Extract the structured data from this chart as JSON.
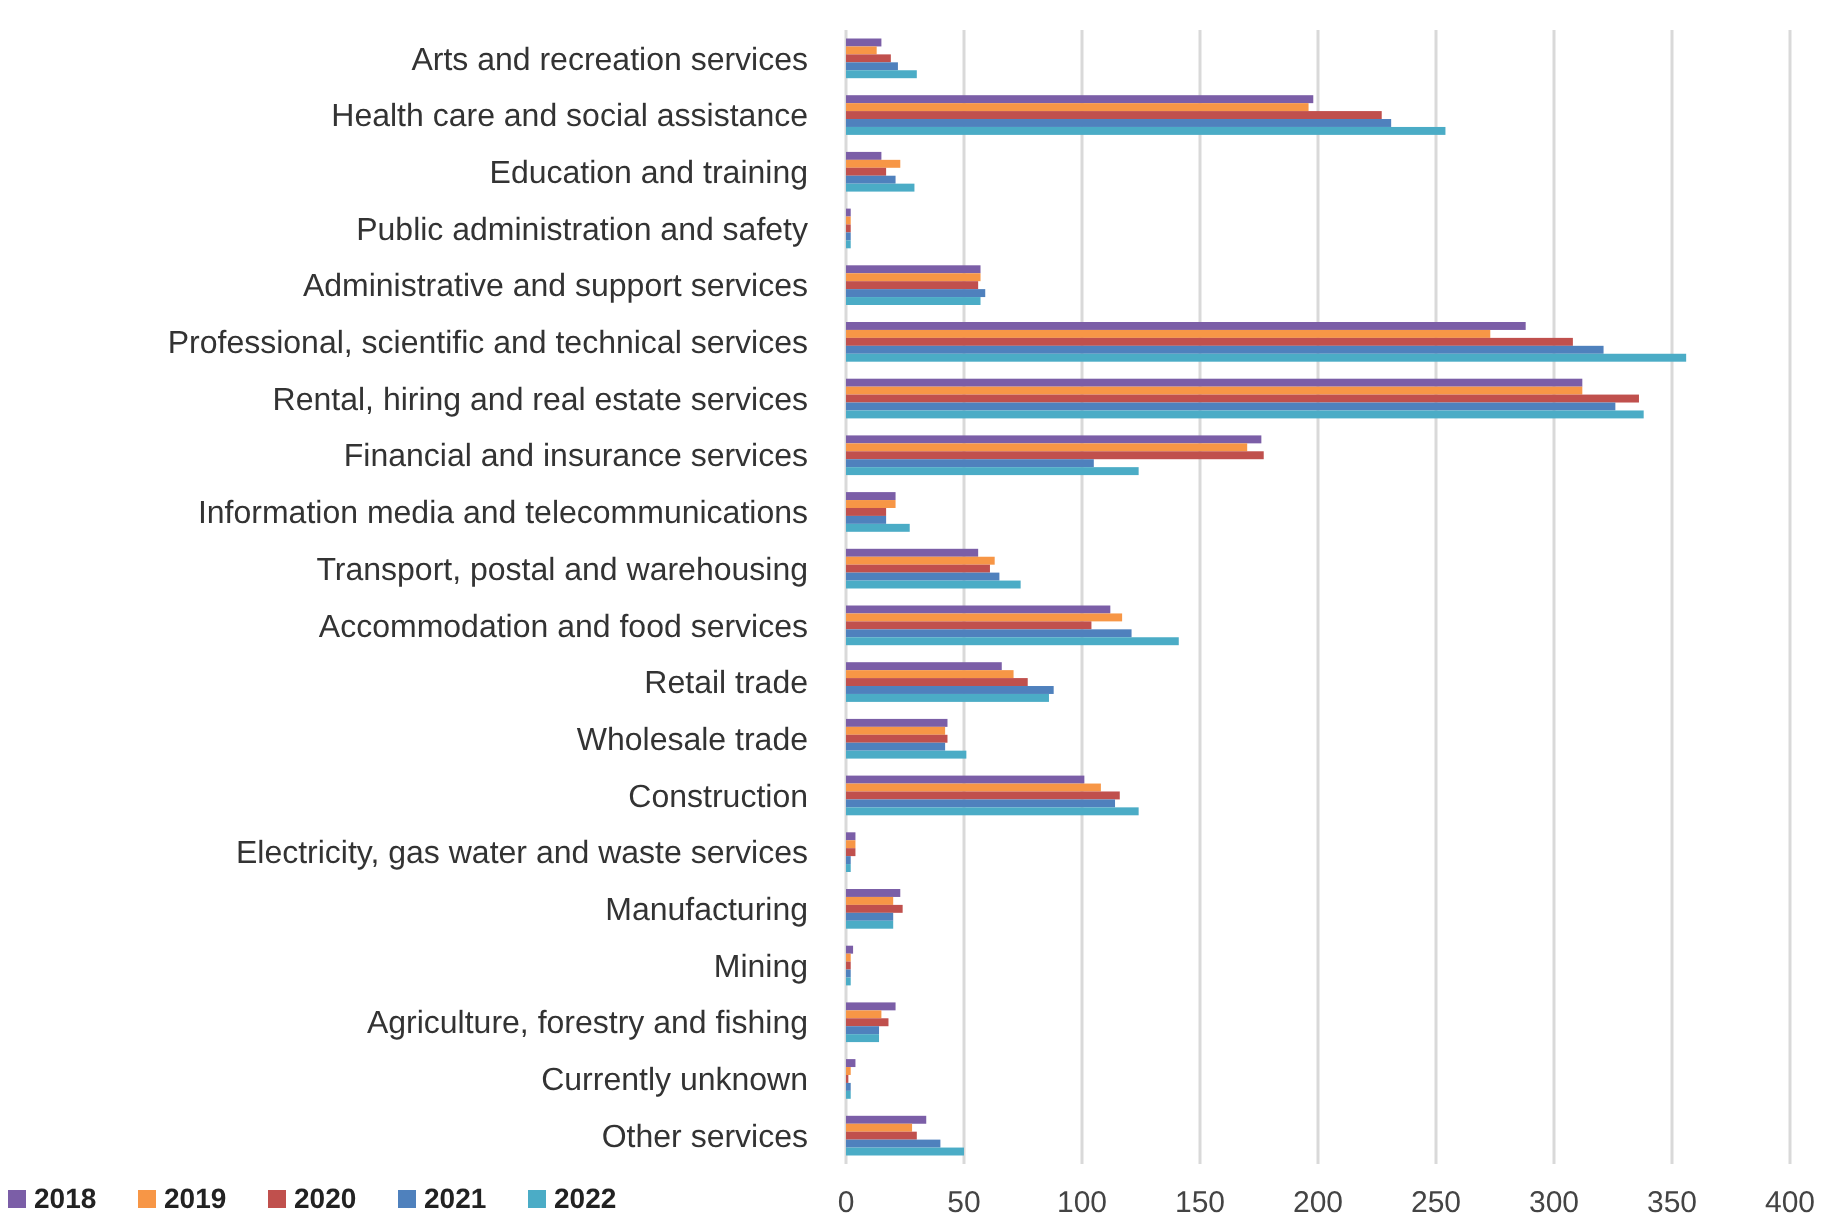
{
  "chart_data": {
    "type": "bar",
    "orientation": "horizontal",
    "categories": [
      "Arts and recreation services",
      "Health care and social assistance",
      "Education and training",
      "Public administration and safety",
      "Administrative and support services",
      "Professional, scientific and technical services",
      "Rental, hiring and real estate services",
      "Financial and insurance services",
      "Information media and telecommunications",
      "Transport, postal and warehousing",
      "Accommodation and food services",
      "Retail trade",
      "Wholesale trade",
      "Construction",
      "Electricity, gas water and waste services",
      "Manufacturing",
      "Mining",
      "Agriculture, forestry and fishing",
      "Currently unknown",
      "Other services"
    ],
    "series": [
      {
        "name": "2018",
        "color": "#7b5ea7",
        "values": [
          15,
          198,
          15,
          2,
          57,
          288,
          312,
          176,
          21,
          56,
          112,
          66,
          43,
          101,
          4,
          23,
          3,
          21,
          4,
          34
        ]
      },
      {
        "name": "2019",
        "color": "#f79646",
        "values": [
          13,
          196,
          23,
          2,
          57,
          273,
          312,
          170,
          21,
          63,
          117,
          71,
          42,
          108,
          4,
          20,
          2,
          15,
          2,
          28
        ]
      },
      {
        "name": "2020",
        "color": "#c0504d",
        "values": [
          19,
          227,
          17,
          2,
          56,
          308,
          336,
          177,
          17,
          61,
          104,
          77,
          43,
          116,
          4,
          24,
          2,
          18,
          1,
          30
        ]
      },
      {
        "name": "2021",
        "color": "#4f81bd",
        "values": [
          22,
          231,
          21,
          2,
          59,
          321,
          326,
          105,
          17,
          65,
          121,
          88,
          42,
          114,
          2,
          20,
          2,
          14,
          2,
          40
        ]
      },
      {
        "name": "2022",
        "color": "#4bacc6",
        "values": [
          30,
          254,
          29,
          2,
          57,
          356,
          338,
          124,
          27,
          74,
          141,
          86,
          51,
          124,
          2,
          20,
          2,
          14,
          2,
          50
        ]
      }
    ],
    "xlim": [
      0,
      400
    ],
    "xticks": [
      0,
      50,
      100,
      150,
      200,
      250,
      300,
      350,
      400
    ],
    "grid": "x",
    "legend": "bottom left"
  }
}
